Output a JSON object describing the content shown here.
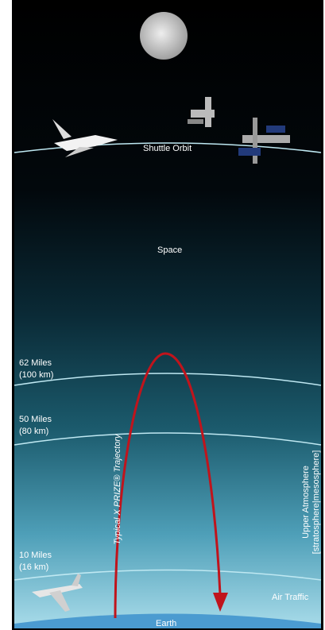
{
  "labels": {
    "shuttle_orbit": "Shuttle Orbit",
    "space": "Space",
    "alt_100": [
      "62 Miles",
      "(100 km)"
    ],
    "alt_80": [
      "50 Miles",
      "(80 km)"
    ],
    "alt_16": [
      "10 Miles",
      "(16 km)"
    ],
    "trajectory": "Typical X PRIZE® Trajectory",
    "upper_atmosphere": [
      "Upper Atmosphere",
      "[stratosphere|mesosphere]"
    ],
    "air_traffic": "Air Traffic",
    "earth": "Earth"
  }
}
